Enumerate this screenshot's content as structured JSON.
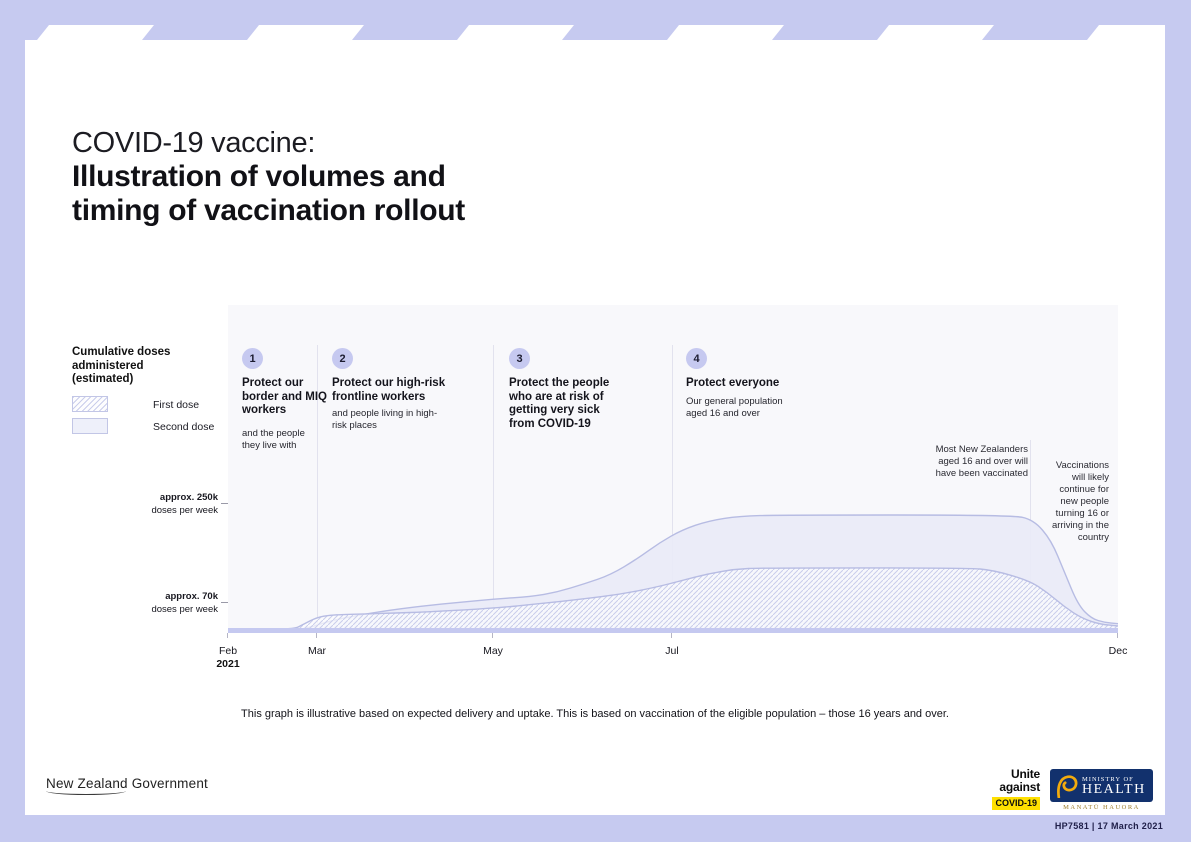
{
  "page": {
    "title_light": "COVID-19 vaccine:",
    "title_bold_line1": "Illustration of volumes and",
    "title_bold_line2": "timing of vaccination rollout",
    "footnote": "This graph is illustrative based on expected delivery and uptake. This is based on vaccination of the eligible population – those 16 years and over.",
    "doc_code": "HP7581 | 17 March 2021"
  },
  "legend": {
    "title": "Cumulative doses administered (estimated)",
    "first_dose_label": "First dose",
    "second_dose_label": "Second dose"
  },
  "phases": [
    {
      "number": "1",
      "heading": "Protect our border and MIQ workers",
      "sub": "and the people they live with"
    },
    {
      "number": "2",
      "heading": "Protect our high-risk frontline workers",
      "sub": "and people living in high-risk places"
    },
    {
      "number": "3",
      "heading": "Protect the people who are at risk of getting very sick from COVID-19",
      "sub": ""
    },
    {
      "number": "4",
      "heading": "Protect everyone",
      "sub": "Our general population aged 16 and over"
    }
  ],
  "axis": {
    "y_labels": [
      {
        "line1": "approx. 250k",
        "line2": "doses per week"
      },
      {
        "line1": "approx. 70k",
        "line2": "doses per week"
      }
    ],
    "x_ticks": [
      {
        "label": "Feb",
        "sub": "2021"
      },
      {
        "label": "Mar"
      },
      {
        "label": "May"
      },
      {
        "label": "Jul"
      },
      {
        "label": "Dec"
      }
    ]
  },
  "annotations": {
    "vaccinated": "Most New Zealanders aged 16 and over will have been vaccinated",
    "continue": "Vaccinations will likely continue for new people turning 16 or arriving in the country"
  },
  "footer": {
    "nz_govt_part1": "New Zealand",
    "nz_govt_part2": " Government",
    "unite_line1": "Unite",
    "unite_line2": "against",
    "unite_chip": "COVID-19",
    "moh_line1": "MINISTRY OF",
    "moh_line2": "HEALTH",
    "moh_sub": "MANATŪ HAUORA"
  },
  "colors": {
    "lavender": "#c6caf0",
    "plot_bg": "#f8f8fb",
    "area_fill": "#e9eaf7",
    "area_stroke": "#b7bce3",
    "hatch_line": "#c9cdeb",
    "phase_circle": "#c6c9f0",
    "unite_yellow": "#ffe000",
    "moh_blue": "#12316d"
  },
  "chart_data": {
    "type": "area",
    "title": "Cumulative doses administered (estimated)",
    "x_unit": "months from Feb 2021",
    "x_ticks": [
      "Feb 2021",
      "Mar",
      "May",
      "Jul",
      "Dec"
    ],
    "x_tick_months": [
      0,
      1,
      3,
      5,
      10
    ],
    "x_range_months": [
      0,
      10
    ],
    "y_reference_lines": [
      {
        "label": "approx. 250k doses per week"
      },
      {
        "label": "approx. 70k doses per week"
      }
    ],
    "values_unit": "relative illustrative scale, 100 = plateau of upper (solid) curve",
    "legend_position": "left",
    "grid": false,
    "phase_boundaries_months": [
      1,
      3,
      5
    ],
    "annotation_divider_month": 9,
    "series": [
      {
        "name": "First dose",
        "style": "hatched",
        "points": [
          [
            0,
            0
          ],
          [
            0.72,
            0
          ],
          [
            0.85,
            5
          ],
          [
            1.0,
            11
          ],
          [
            1.15,
            13
          ],
          [
            1.3,
            13.5
          ],
          [
            1.8,
            14.5
          ],
          [
            2.3,
            16
          ],
          [
            3.0,
            19
          ],
          [
            3.5,
            23
          ],
          [
            4.0,
            27
          ],
          [
            4.4,
            31
          ],
          [
            4.8,
            37
          ],
          [
            5.1,
            43
          ],
          [
            5.4,
            49
          ],
          [
            5.7,
            53
          ],
          [
            6.0,
            54
          ],
          [
            8.3,
            54
          ],
          [
            8.6,
            52
          ],
          [
            9.0,
            43
          ],
          [
            9.2,
            33
          ],
          [
            9.4,
            20
          ],
          [
            9.6,
            10
          ],
          [
            9.8,
            5
          ],
          [
            10,
            3.5
          ]
        ]
      },
      {
        "name": "Second dose",
        "style": "solid",
        "points": [
          [
            0,
            0
          ],
          [
            0.78,
            0
          ],
          [
            0.95,
            3
          ],
          [
            1.2,
            9
          ],
          [
            1.7,
            16
          ],
          [
            2.2,
            21
          ],
          [
            2.6,
            24
          ],
          [
            3.0,
            27
          ],
          [
            3.4,
            29
          ],
          [
            3.7,
            33
          ],
          [
            4.0,
            40
          ],
          [
            4.3,
            48
          ],
          [
            4.6,
            62
          ],
          [
            4.85,
            76
          ],
          [
            5.1,
            87
          ],
          [
            5.4,
            95
          ],
          [
            5.75,
            99
          ],
          [
            6.2,
            100
          ],
          [
            8.8,
            100
          ],
          [
            9.05,
            96
          ],
          [
            9.25,
            78
          ],
          [
            9.4,
            50
          ],
          [
            9.55,
            22
          ],
          [
            9.7,
            10
          ],
          [
            9.85,
            6.5
          ],
          [
            10,
            5.5
          ]
        ]
      }
    ],
    "note": "Illustrative curves; hatched band = first dose, solid band above = second dose"
  }
}
